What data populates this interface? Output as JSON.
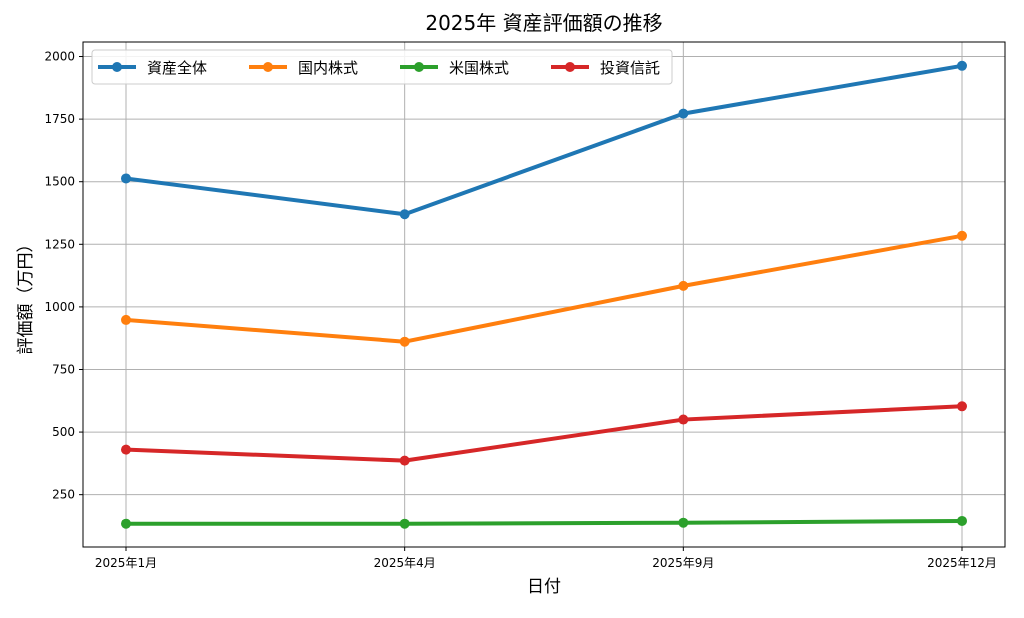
{
  "chart_data": {
    "type": "line",
    "title": "2025年 資産評価額の推移",
    "xlabel": "日付",
    "ylabel": "評価額（万円）",
    "categories": [
      "2025年1月",
      "2025年4月",
      "2025年9月",
      "2025年12月"
    ],
    "ylim": [
      41,
      2058
    ],
    "yticks": [
      250,
      500,
      750,
      1000,
      1250,
      1500,
      1750,
      2000
    ],
    "grid": true,
    "legend_position": "top-left",
    "series": [
      {
        "name": "資産全体",
        "color": "#1f77b4",
        "values": [
          1513,
          1370,
          1772,
          1963
        ]
      },
      {
        "name": "国内株式",
        "color": "#ff7f0e",
        "values": [
          948,
          861,
          1084,
          1284
        ]
      },
      {
        "name": "米国株式",
        "color": "#2ca02c",
        "values": [
          134,
          134,
          138,
          145
        ]
      },
      {
        "name": "投資信託",
        "color": "#d62728",
        "values": [
          430,
          386,
          550,
          603
        ]
      }
    ]
  }
}
